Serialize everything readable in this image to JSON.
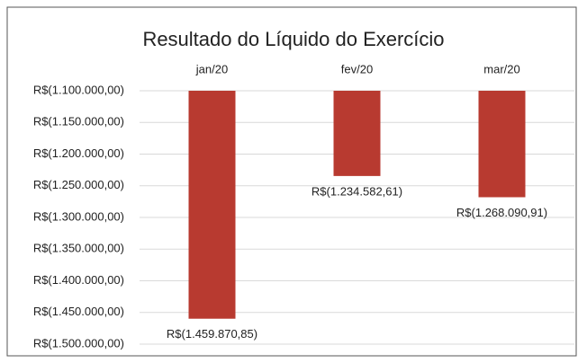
{
  "chart_data": {
    "type": "bar",
    "title": "Resultado do Líquido do Exercício",
    "categories": [
      "jan/20",
      "fev/20",
      "mar/20"
    ],
    "values": [
      -1459870.85,
      -1234582.61,
      -1268090.91
    ],
    "value_labels": [
      "R$(1.459.870,85)",
      "R$(1.234.582,61)",
      "R$(1.268.090,91)"
    ],
    "color": "#b83a30",
    "ylim": [
      -1500000,
      -1100000
    ],
    "yticks": [
      {
        "value": -1100000,
        "label": "R$(1.100.000,00)"
      },
      {
        "value": -1150000,
        "label": "R$(1.150.000,00)"
      },
      {
        "value": -1200000,
        "label": "R$(1.200.000,00)"
      },
      {
        "value": -1250000,
        "label": "R$(1.250.000,00)"
      },
      {
        "value": -1300000,
        "label": "R$(1.300.000,00)"
      },
      {
        "value": -1350000,
        "label": "R$(1.350.000,00)"
      },
      {
        "value": -1400000,
        "label": "R$(1.400.000,00)"
      },
      {
        "value": -1450000,
        "label": "R$(1.450.000,00)"
      },
      {
        "value": -1500000,
        "label": "R$(1.500.000,00)"
      }
    ],
    "grid": true
  }
}
